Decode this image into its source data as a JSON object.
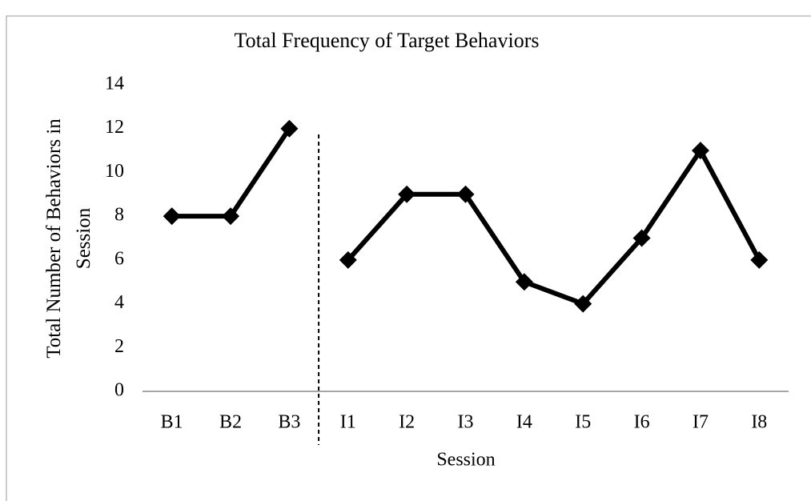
{
  "chart_data": {
    "type": "line",
    "title": "Total Frequency of Target Behaviors",
    "xlabel": "Session",
    "ylabel": "Total Number of Behaviors in Session",
    "categories": [
      "B1",
      "B2",
      "B3",
      "I1",
      "I2",
      "I3",
      "I4",
      "I5",
      "I6",
      "I7",
      "I8"
    ],
    "series": [
      {
        "color": "#000000",
        "values": [
          8,
          8,
          12,
          null,
          null,
          null,
          null,
          null,
          null,
          null,
          null
        ]
      },
      {
        "color": "#000000",
        "values": [
          null,
          null,
          null,
          6,
          9,
          9,
          5,
          4,
          7,
          11,
          6
        ]
      }
    ],
    "ylim": [
      0,
      14
    ],
    "yticks": [
      0,
      2,
      4,
      6,
      8,
      10,
      12,
      14
    ],
    "grid": false
  }
}
